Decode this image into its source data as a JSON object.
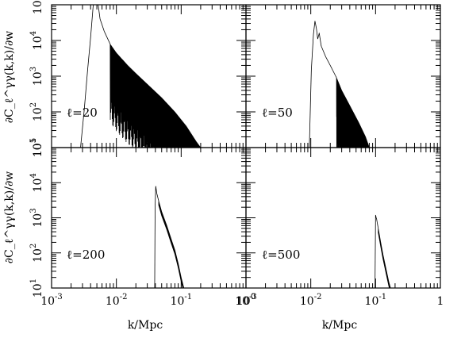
{
  "chart_data": {
    "type": "line",
    "xlabel": "k/Mpc",
    "ylabel": "∂C_ℓ^γγ(k,k)/∂w",
    "xscale": "log",
    "yscale": "log",
    "xlim": [
      0.001,
      1
    ],
    "ylim": [
      10,
      100000
    ],
    "x_tick_labels": [
      {
        "base": "10",
        "exp": "-3"
      },
      {
        "base": "10",
        "exp": "-2"
      },
      {
        "base": "10",
        "exp": "-1"
      },
      {
        "base": "10",
        "exp": "0"
      }
    ],
    "x_tick_labels_right": [
      {
        "base": "10",
        "exp": "-3"
      },
      {
        "base": "10",
        "exp": "-2"
      },
      {
        "base": "10",
        "exp": "-1"
      },
      {
        "base": "1",
        "exp": ""
      }
    ],
    "y_tick_labels": [
      {
        "base": "10",
        "exp": "1"
      },
      {
        "base": "10",
        "exp": "2"
      },
      {
        "base": "10",
        "exp": "3"
      },
      {
        "base": "10",
        "exp": "4"
      },
      {
        "base": "10",
        "exp": "5"
      }
    ],
    "panels": [
      {
        "label": "ℓ=20",
        "ell": 20,
        "envelope": [
          [
            0.0028,
            10
          ],
          [
            0.0032,
            120
          ],
          [
            0.0036,
            1500
          ],
          [
            0.004,
            12000
          ],
          [
            0.0044,
            100000
          ],
          [
            0.0048,
            220000
          ],
          [
            0.0052,
            110000
          ],
          [
            0.0056,
            40000
          ],
          [
            0.0065,
            18000
          ],
          [
            0.008,
            8000
          ],
          [
            0.01,
            4500
          ],
          [
            0.015,
            2000
          ],
          [
            0.02,
            1200
          ],
          [
            0.03,
            600
          ],
          [
            0.05,
            250
          ],
          [
            0.08,
            100
          ],
          [
            0.12,
            40
          ],
          [
            0.17,
            15
          ],
          [
            0.2,
            10
          ]
        ],
        "oscillating_from": 0.008,
        "oscillation_floor": 10
      },
      {
        "label": "ℓ=50",
        "ell": 50,
        "envelope": [
          [
            0.0095,
            10
          ],
          [
            0.0102,
            1500
          ],
          [
            0.011,
            15000
          ],
          [
            0.0116,
            35000
          ],
          [
            0.0122,
            22000
          ],
          [
            0.0128,
            11000
          ],
          [
            0.0135,
            16000
          ],
          [
            0.0145,
            7000
          ],
          [
            0.017,
            3500
          ],
          [
            0.02,
            2000
          ],
          [
            0.025,
            900
          ],
          [
            0.03,
            400
          ],
          [
            0.04,
            150
          ],
          [
            0.055,
            50
          ],
          [
            0.07,
            20
          ],
          [
            0.08,
            10
          ]
        ],
        "oscillating_from": 0.025,
        "oscillation_floor": 10
      },
      {
        "label": "ℓ=200",
        "ell": 200,
        "envelope": [
          [
            0.039,
            10
          ],
          [
            0.0396,
            2000
          ],
          [
            0.0405,
            8000
          ],
          [
            0.042,
            5000
          ],
          [
            0.045,
            3000
          ],
          [
            0.05,
            1500
          ],
          [
            0.06,
            600
          ],
          [
            0.07,
            250
          ],
          [
            0.08,
            120
          ],
          [
            0.09,
            50
          ],
          [
            0.1,
            20
          ],
          [
            0.11,
            10
          ]
        ],
        "oscillating_from": 0.045,
        "oscillation_floor": 0
      },
      {
        "label": "ℓ=500",
        "ell": 500,
        "envelope": [
          [
            0.098,
            10
          ],
          [
            0.1,
            1200
          ],
          [
            0.104,
            900
          ],
          [
            0.11,
            500
          ],
          [
            0.12,
            200
          ],
          [
            0.13,
            90
          ],
          [
            0.145,
            35
          ],
          [
            0.16,
            15
          ],
          [
            0.17,
            10
          ]
        ],
        "oscillating_from": 0.11,
        "oscillation_floor": 0
      }
    ]
  }
}
